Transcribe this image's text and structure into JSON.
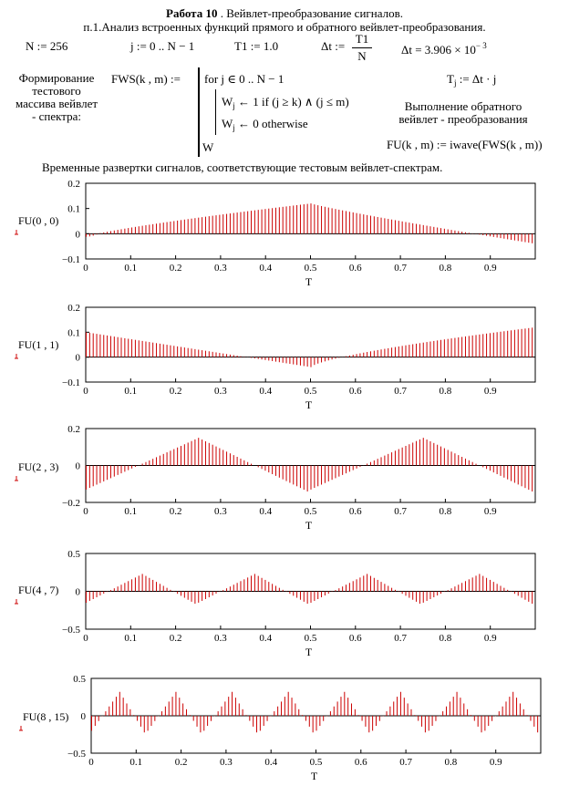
{
  "header": {
    "title_bold": "Работа 10",
    "title_rest": " . Вейвлет-преобразование сигналов.",
    "subtitle": "п.1.Анализ встроенных функций прямого и обратного вейвлет-преобразования."
  },
  "defs": {
    "n_def": "N := 256",
    "j_def": "j := 0 .. N − 1",
    "t1_def": "T1 := 1.0",
    "dt_lhs": "Δt :=",
    "dt_num": "T1",
    "dt_den": "N",
    "dt_val_lhs": "Δt = 3.906 × 10",
    "dt_val_exp": "− 3"
  },
  "program": {
    "comment_form": "Формирование\nтестового\nмассива вейвлет\n- спектра:",
    "fws_lhs": "FWS(k , m) :=",
    "line_for": "for  j ∈ 0 .. N − 1",
    "line_w1_a": "W",
    "line_w1_sub": "j",
    "line_w1_b": " ← 1   if  (j ≥ k) ∧ (j ≤ m)",
    "line_w0_a": "W",
    "line_w0_sub": "j",
    "line_w0_b": " ← 0   otherwise",
    "line_ret": "W",
    "tj_a": "T",
    "tj_sub": "j",
    "tj_b": " := Δt · j",
    "comment_inv": "Выполнение обратного\nвейвлет - преобразования",
    "fu_def": "FU(k , m) := iwave(FWS(k , m))"
  },
  "caption": "Временные развертки сигналов, соответствующие тестовым вейвлет-спектрам.",
  "chart_data": [
    {
      "type": "bar",
      "ylabel": "FU(0 , 0)",
      "xlabel": "T",
      "k": 0,
      "m": 0,
      "xlim": [
        0,
        1
      ],
      "ylim": [
        -0.1,
        0.2
      ],
      "yticks": [
        "0.2",
        "0.1",
        "0",
        "−0.1"
      ],
      "ytick_values": [
        0.2,
        0.1,
        0,
        -0.1
      ],
      "xticks": [
        "0",
        "0.1",
        "0.2",
        "0.3",
        "0.4",
        "0.5",
        "0.6",
        "0.7",
        "0.8",
        "0.9"
      ],
      "n": 256,
      "color": "#cc0000"
    },
    {
      "type": "bar",
      "ylabel": "FU(1 , 1)",
      "xlabel": "T",
      "k": 1,
      "m": 1,
      "xlim": [
        0,
        1
      ],
      "ylim": [
        -0.1,
        0.2
      ],
      "yticks": [
        "0.2",
        "0.1",
        "0",
        "−0.1"
      ],
      "ytick_values": [
        0.2,
        0.1,
        0,
        -0.1
      ],
      "xticks": [
        "0",
        "0.1",
        "0.2",
        "0.3",
        "0.4",
        "0.5",
        "0.6",
        "0.7",
        "0.8",
        "0.9"
      ],
      "n": 256,
      "color": "#cc0000"
    },
    {
      "type": "bar",
      "ylabel": "FU(2 , 3)",
      "xlabel": "T",
      "k": 2,
      "m": 3,
      "xlim": [
        0,
        1
      ],
      "ylim": [
        -0.2,
        0.2
      ],
      "yticks": [
        "0.2",
        "0",
        "−0.2"
      ],
      "ytick_values": [
        0.2,
        0,
        -0.2
      ],
      "xticks": [
        "0",
        "0.1",
        "0.2",
        "0.3",
        "0.4",
        "0.5",
        "0.6",
        "0.7",
        "0.8",
        "0.9"
      ],
      "n": 256,
      "color": "#cc0000"
    },
    {
      "type": "bar",
      "ylabel": "FU(4 , 7)",
      "xlabel": "T",
      "k": 4,
      "m": 7,
      "xlim": [
        0,
        1
      ],
      "ylim": [
        -0.5,
        0.5
      ],
      "yticks": [
        "0.5",
        "0",
        "−0.5"
      ],
      "ytick_values": [
        0.5,
        0,
        -0.5
      ],
      "xticks": [
        "0",
        "0.1",
        "0.2",
        "0.3",
        "0.4",
        "0.5",
        "0.6",
        "0.7",
        "0.8",
        "0.9"
      ],
      "n": 256,
      "color": "#cc0000"
    },
    {
      "type": "bar",
      "ylabel": "FU(8 , 15)",
      "xlabel": "T",
      "k": 8,
      "m": 15,
      "xlim": [
        0,
        1
      ],
      "ylim": [
        -0.5,
        0.5
      ],
      "yticks": [
        "0.5",
        "0",
        "−0.5"
      ],
      "ytick_values": [
        0.5,
        0,
        -0.5
      ],
      "xticks": [
        "0",
        "0.1",
        "0.2",
        "0.3",
        "0.4",
        "0.5",
        "0.6",
        "0.7",
        "0.8",
        "0.9"
      ],
      "n": 256,
      "color": "#cc0000"
    }
  ]
}
